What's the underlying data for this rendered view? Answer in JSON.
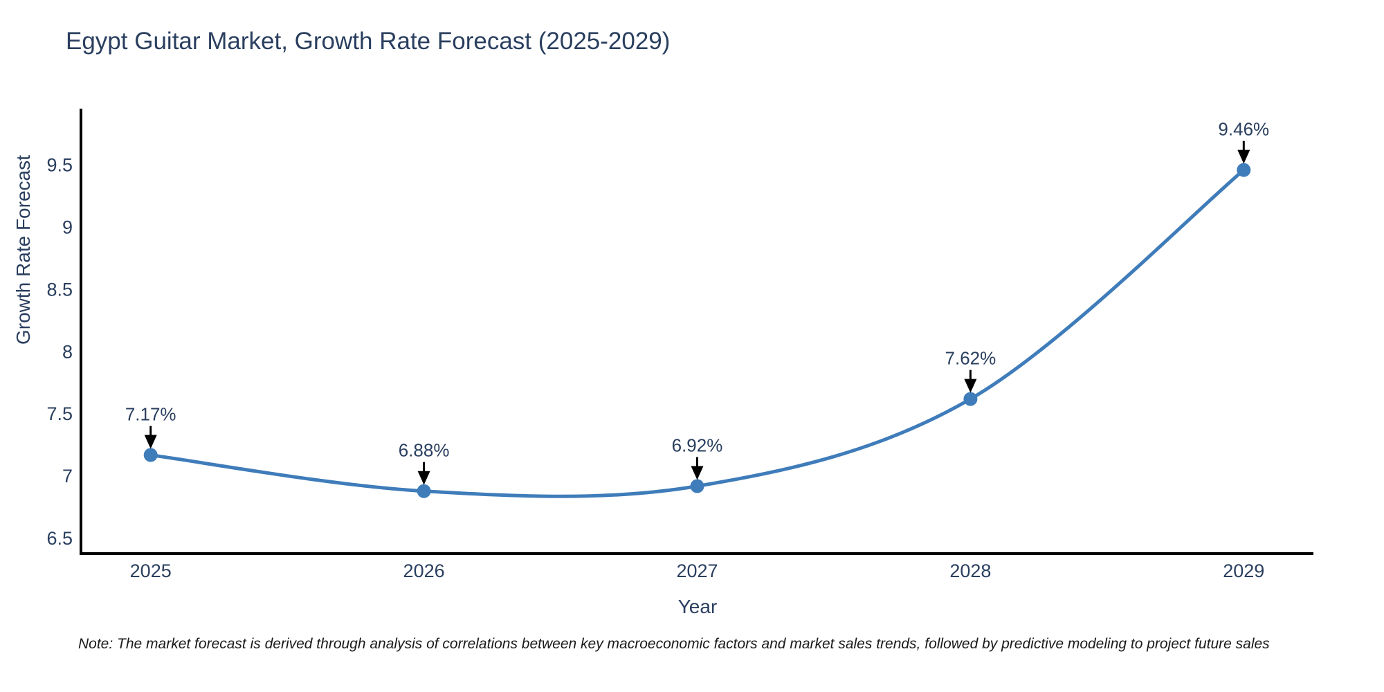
{
  "title": "Egypt Guitar Market, Growth Rate Forecast (2025-2029)",
  "note": "Note: The market forecast is derived through analysis of correlations between key macroeconomic factors and market sales trends, followed by predictive modeling to project future sales",
  "colors": {
    "line": "#3f7cba",
    "marker": "#3f7cba",
    "axis": "#000000",
    "text": "#2a3f5f",
    "arrow": "#000000",
    "background": "#ffffff"
  },
  "chart_data": {
    "type": "line",
    "title": "Egypt Guitar Market, Growth Rate Forecast (2025-2029)",
    "xlabel": "Year",
    "ylabel": "Growth Rate Forecast",
    "x": [
      2025,
      2026,
      2027,
      2028,
      2029
    ],
    "y": [
      7.17,
      6.88,
      6.92,
      7.62,
      9.46
    ],
    "point_labels": [
      "7.17%",
      "6.88%",
      "6.92%",
      "7.62%",
      "9.46%"
    ],
    "xtick_labels": [
      "2025",
      "2026",
      "2027",
      "2028",
      "2029"
    ],
    "ytick_values": [
      6.5,
      7,
      7.5,
      8,
      8.5,
      9,
      9.5
    ],
    "ytick_labels": [
      "6.5",
      "7",
      "7.5",
      "8",
      "8.5",
      "9",
      "9.5"
    ],
    "xlim": [
      2024.745,
      2029.255
    ],
    "ylim": [
      6.378,
      9.953
    ],
    "grid": false,
    "legend": "none",
    "curve": "spline",
    "annotations_arrows": true
  }
}
